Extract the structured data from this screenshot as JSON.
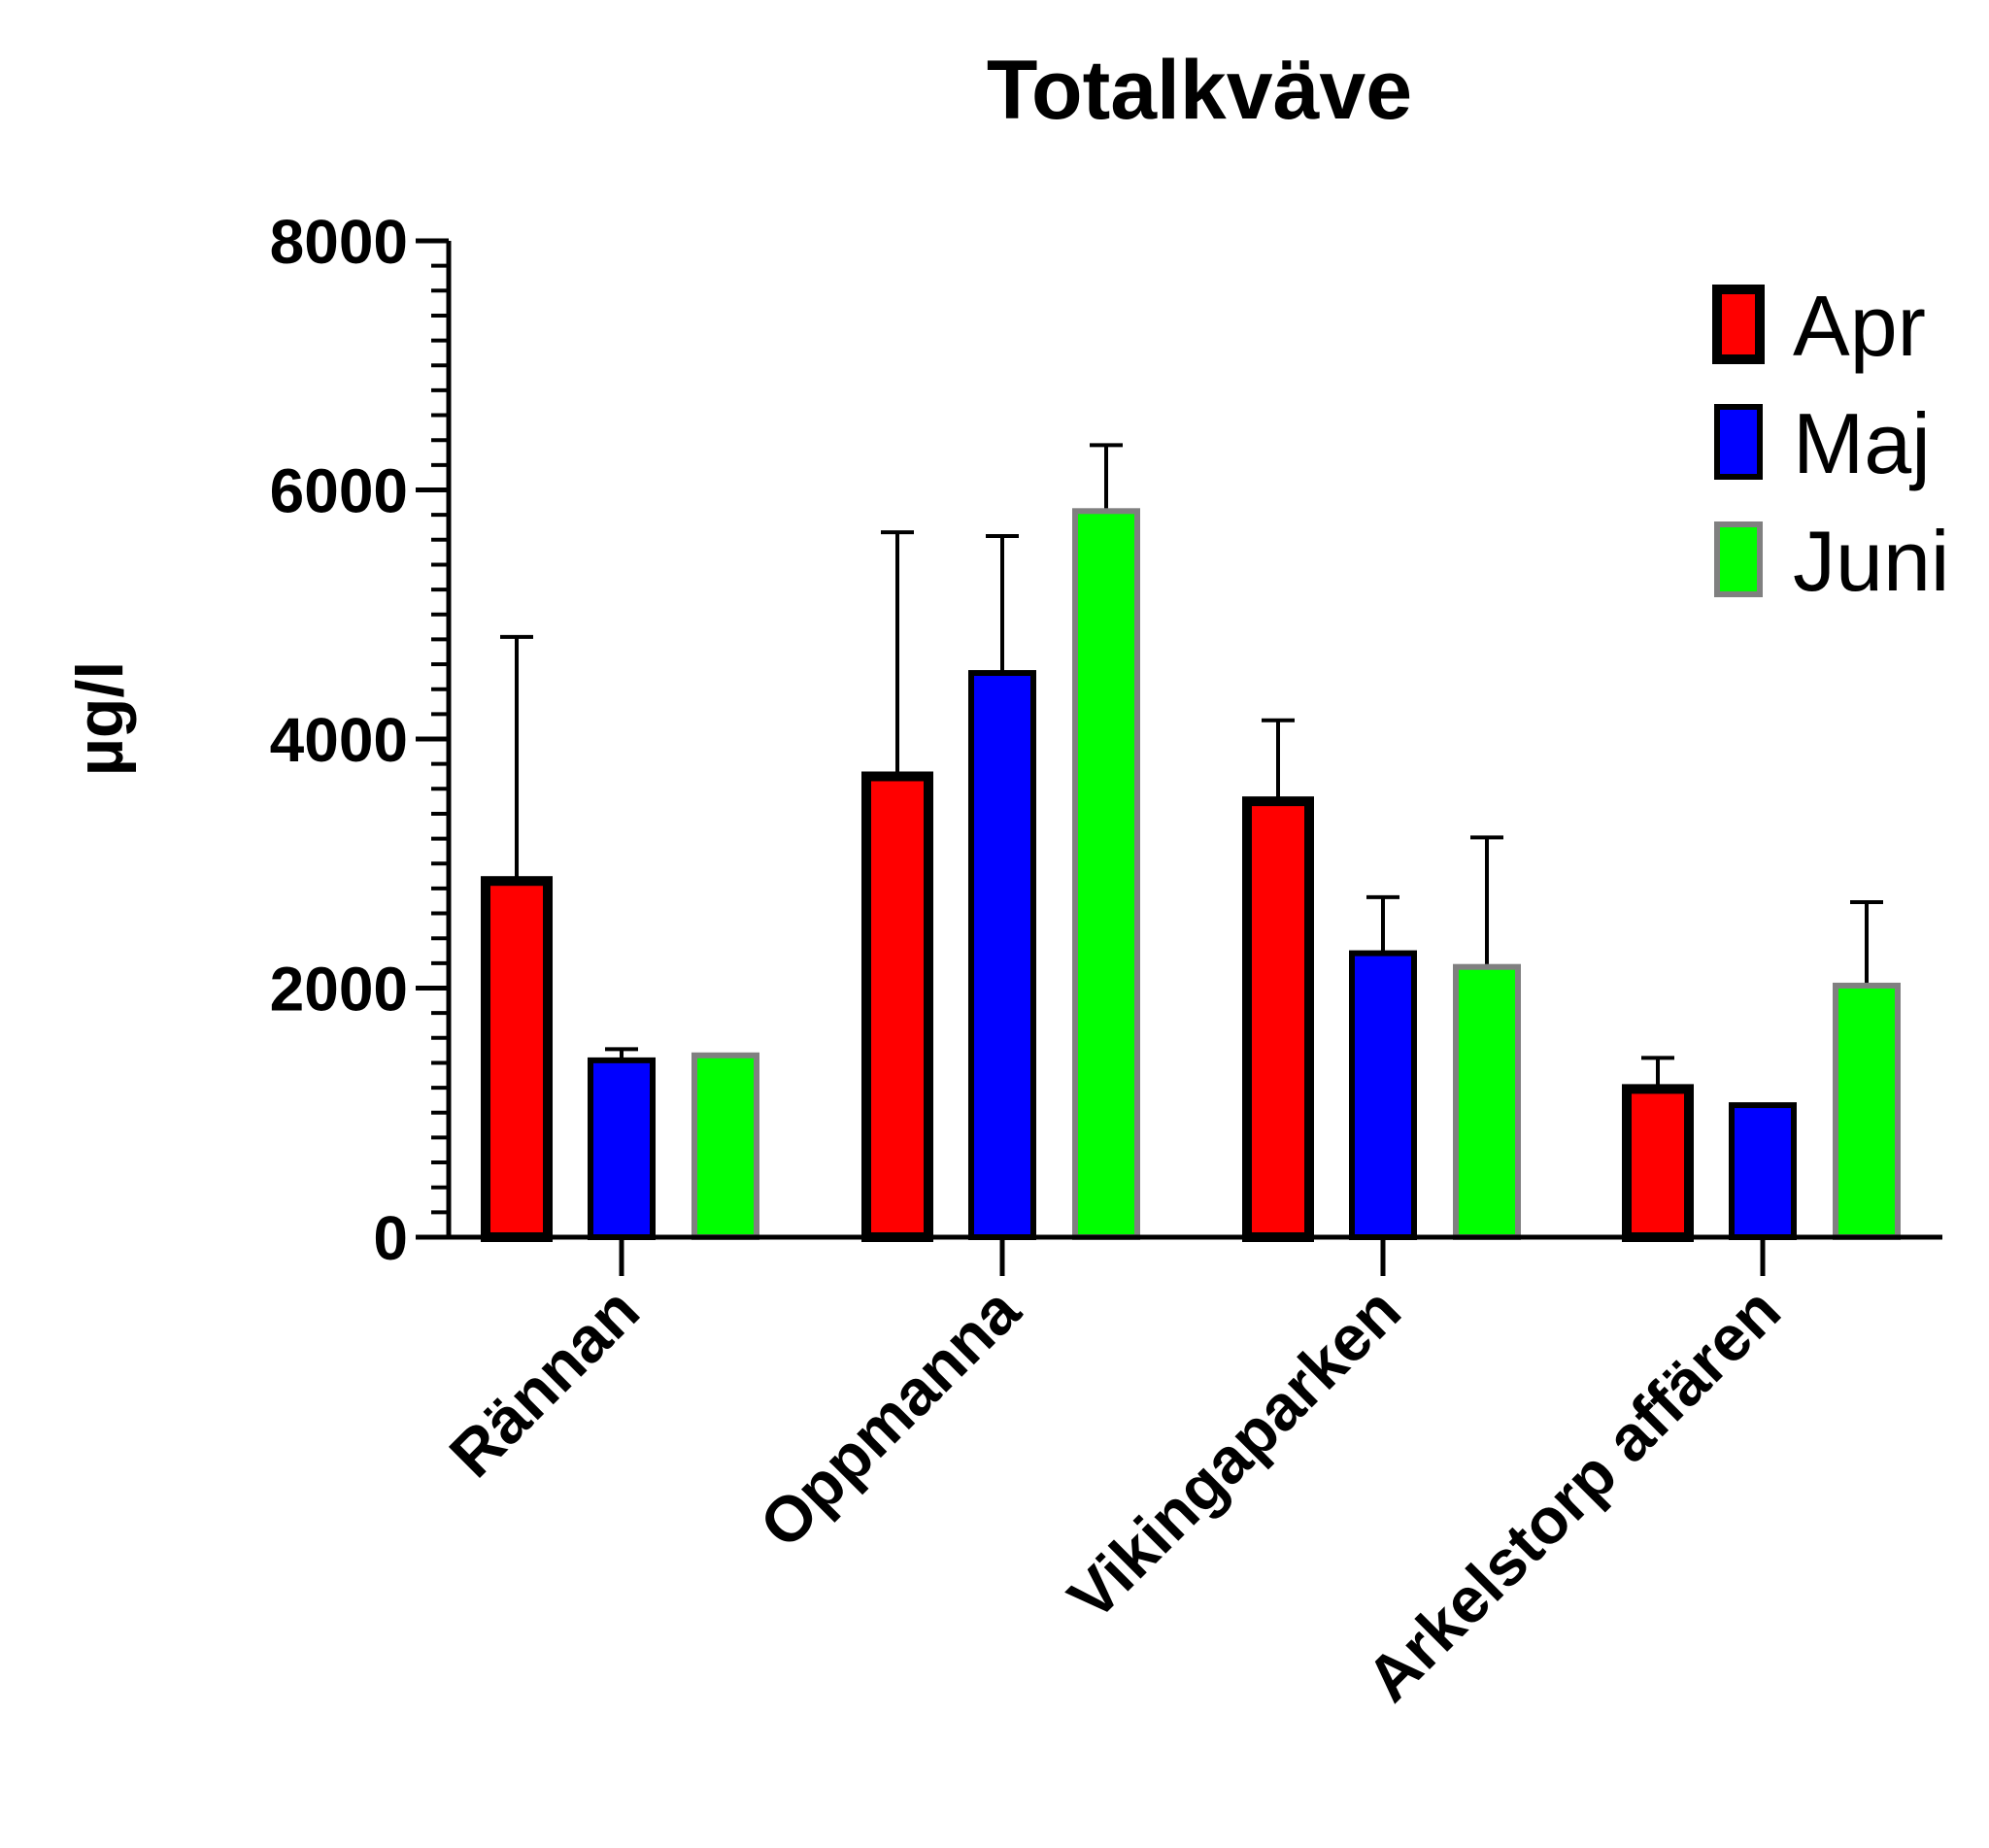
{
  "chart_data": {
    "type": "bar",
    "title": "Totalkväve",
    "xlabel": "",
    "ylabel": "µg/l",
    "ylim": [
      0,
      8000
    ],
    "yticks": [
      0,
      2000,
      4000,
      6000,
      8000
    ],
    "minor_tick_step": 200,
    "categories": [
      "Rännan",
      "Oppmanna",
      "Vikingaparken",
      "Arkelstorp affären"
    ],
    "series": [
      {
        "name": "Apr",
        "fill": "#ff0000",
        "stroke": "#000000",
        "values": [
          2860,
          3700,
          3500,
          1190
        ],
        "error_upper": [
          4820,
          5660,
          4150,
          1440
        ]
      },
      {
        "name": "Maj",
        "fill": "#0000ff",
        "stroke": "#000000",
        "values": [
          1420,
          4530,
          2280,
          1060
        ],
        "error_upper": [
          1510,
          5630,
          2730,
          1060
        ]
      },
      {
        "name": "Juni",
        "fill": "#00ff00",
        "stroke": "#808080",
        "values": [
          1460,
          5830,
          2170,
          2020
        ],
        "error_upper": [
          1460,
          6360,
          3210,
          2690
        ]
      }
    ],
    "legend": "top-right",
    "grid": false
  }
}
